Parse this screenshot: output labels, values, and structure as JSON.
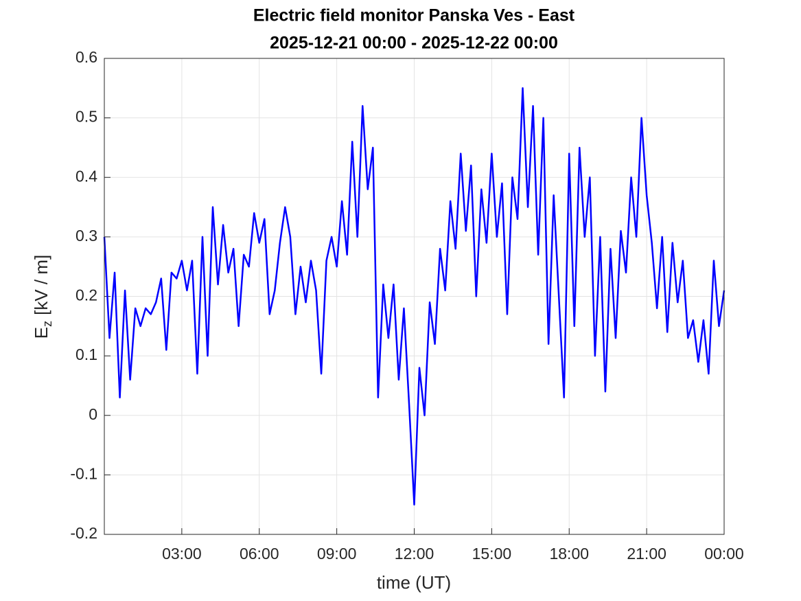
{
  "chart_data": {
    "type": "line",
    "title": "Electric field monitor Panska Ves - East",
    "subtitle": "2025-12-21 00:00 - 2025-12-22 00:00",
    "xlabel": "time (UT)",
    "ylabel": "E",
    "ylabel_subscript": "z",
    "ylabel_unit": "[kV / m]",
    "xlim": [
      0,
      24
    ],
    "xticks": [
      {
        "value": 3,
        "label": "03:00"
      },
      {
        "value": 6,
        "label": "06:00"
      },
      {
        "value": 9,
        "label": "09:00"
      },
      {
        "value": 12,
        "label": "12:00"
      },
      {
        "value": 15,
        "label": "15:00"
      },
      {
        "value": 18,
        "label": "18:00"
      },
      {
        "value": 21,
        "label": "21:00"
      },
      {
        "value": 24,
        "label": "00:00"
      }
    ],
    "ylim": [
      -0.2,
      0.6
    ],
    "yticks": [
      -0.2,
      -0.1,
      0,
      0.1,
      0.2,
      0.3,
      0.4,
      0.5,
      0.6
    ],
    "grid": true,
    "series": [
      {
        "color": "#0000ff",
        "x": [
          0,
          0.2,
          0.4,
          0.6,
          0.8,
          1,
          1.2,
          1.4,
          1.6,
          1.8,
          2,
          2.2,
          2.4,
          2.6,
          2.8,
          3,
          3.2,
          3.4,
          3.6,
          3.8,
          4,
          4.2,
          4.4,
          4.6,
          4.8,
          5,
          5.2,
          5.4,
          5.6,
          5.8,
          6,
          6.2,
          6.4,
          6.6,
          6.8,
          7,
          7.2,
          7.4,
          7.6,
          7.8,
          8,
          8.2,
          8.4,
          8.6,
          8.8,
          9,
          9.2,
          9.4,
          9.6,
          9.8,
          10,
          10.2,
          10.4,
          10.6,
          10.8,
          11,
          11.2,
          11.4,
          11.6,
          11.8,
          12,
          12.2,
          12.4,
          12.6,
          12.8,
          13,
          13.2,
          13.4,
          13.6,
          13.8,
          14,
          14.2,
          14.4,
          14.6,
          14.8,
          15,
          15.2,
          15.4,
          15.6,
          15.8,
          16,
          16.2,
          16.4,
          16.6,
          16.8,
          17,
          17.2,
          17.4,
          17.6,
          17.8,
          18,
          18.2,
          18.4,
          18.6,
          18.8,
          19,
          19.2,
          19.4,
          19.6,
          19.8,
          20,
          20.2,
          20.4,
          20.6,
          20.8,
          21,
          21.2,
          21.4,
          21.6,
          21.8,
          22,
          22.2,
          22.4,
          22.6,
          22.8,
          23,
          23.2,
          23.4,
          23.6,
          23.8,
          24
        ],
        "values": [
          0.3,
          0.13,
          0.24,
          0.03,
          0.21,
          0.06,
          0.18,
          0.15,
          0.18,
          0.17,
          0.19,
          0.23,
          0.11,
          0.24,
          0.23,
          0.26,
          0.21,
          0.26,
          0.07,
          0.3,
          0.1,
          0.35,
          0.22,
          0.32,
          0.24,
          0.28,
          0.15,
          0.27,
          0.25,
          0.34,
          0.29,
          0.33,
          0.17,
          0.21,
          0.29,
          0.35,
          0.3,
          0.17,
          0.25,
          0.19,
          0.26,
          0.21,
          0.07,
          0.26,
          0.3,
          0.25,
          0.36,
          0.27,
          0.46,
          0.3,
          0.52,
          0.38,
          0.45,
          0.03,
          0.22,
          0.13,
          0.22,
          0.06,
          0.18,
          0.02,
          -0.15,
          0.08,
          0.0,
          0.19,
          0.12,
          0.28,
          0.21,
          0.36,
          0.28,
          0.44,
          0.31,
          0.42,
          0.2,
          0.38,
          0.29,
          0.44,
          0.3,
          0.39,
          0.17,
          0.4,
          0.33,
          0.55,
          0.35,
          0.52,
          0.27,
          0.5,
          0.12,
          0.37,
          0.2,
          0.03,
          0.44,
          0.15,
          0.45,
          0.3,
          0.4,
          0.1,
          0.3,
          0.04,
          0.28,
          0.13,
          0.31,
          0.24,
          0.4,
          0.3,
          0.5,
          0.37,
          0.29,
          0.18,
          0.3,
          0.14,
          0.29,
          0.19,
          0.26,
          0.13,
          0.16,
          0.09,
          0.16,
          0.07,
          0.26,
          0.15,
          0.21
        ]
      }
    ]
  }
}
